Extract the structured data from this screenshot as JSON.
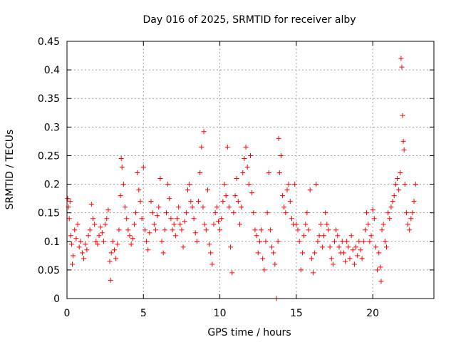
{
  "chart_data": {
    "type": "scatter",
    "title": "Day 016 of 2025, SRMTID for receiver alby",
    "xlabel": "GPS time / hours",
    "ylabel": "SRMTID / TECUs",
    "xlim": [
      0,
      24
    ],
    "ylim": [
      0,
      0.45
    ],
    "xticks": [
      0,
      5,
      10,
      15,
      20
    ],
    "xtick_labels": [
      "0",
      "5",
      "10",
      "15",
      "20"
    ],
    "yticks": [
      0,
      0.05,
      0.1,
      0.15,
      0.2,
      0.25,
      0.3,
      0.35,
      0.4,
      0.45
    ],
    "ytick_labels": [
      "0",
      "0.05",
      "0.1",
      "0.15",
      "0.2",
      "0.25",
      "0.3",
      "0.35",
      "0.4",
      "0.45"
    ],
    "grid": true,
    "marker": "+",
    "color": "#ff0000",
    "series": [
      {
        "name": "SRMTID",
        "points": [
          [
            0.05,
            0.175
          ],
          [
            0.1,
            0.16
          ],
          [
            0.15,
            0.14
          ],
          [
            0.2,
            0.17
          ],
          [
            0.25,
            0.11
          ],
          [
            0.3,
            0.095
          ],
          [
            0.35,
            0.06
          ],
          [
            0.4,
            0.075
          ],
          [
            0.5,
            0.12
          ],
          [
            0.6,
            0.105
          ],
          [
            0.7,
            0.13
          ],
          [
            0.8,
            0.09
          ],
          [
            0.9,
            0.1
          ],
          [
            1.0,
            0.08
          ],
          [
            1.1,
            0.07
          ],
          [
            1.2,
            0.095
          ],
          [
            1.3,
            0.085
          ],
          [
            1.4,
            0.11
          ],
          [
            1.5,
            0.12
          ],
          [
            1.6,
            0.165
          ],
          [
            1.7,
            0.14
          ],
          [
            1.8,
            0.13
          ],
          [
            1.9,
            0.1
          ],
          [
            2.0,
            0.095
          ],
          [
            2.1,
            0.11
          ],
          [
            2.2,
            0.125
          ],
          [
            2.3,
            0.115
          ],
          [
            2.4,
            0.1
          ],
          [
            2.5,
            0.13
          ],
          [
            2.6,
            0.14
          ],
          [
            2.7,
            0.155
          ],
          [
            2.8,
            0.065
          ],
          [
            2.85,
            0.032
          ],
          [
            2.9,
            0.08
          ],
          [
            3.0,
            0.1
          ],
          [
            3.1,
            0.085
          ],
          [
            3.2,
            0.07
          ],
          [
            3.3,
            0.095
          ],
          [
            3.4,
            0.12
          ],
          [
            3.5,
            0.18
          ],
          [
            3.55,
            0.245
          ],
          [
            3.6,
            0.23
          ],
          [
            3.7,
            0.2
          ],
          [
            3.8,
            0.16
          ],
          [
            3.9,
            0.14
          ],
          [
            4.0,
            0.12
          ],
          [
            4.1,
            0.11
          ],
          [
            4.2,
            0.095
          ],
          [
            4.3,
            0.105
          ],
          [
            4.4,
            0.13
          ],
          [
            4.5,
            0.15
          ],
          [
            4.6,
            0.22
          ],
          [
            4.7,
            0.19
          ],
          [
            4.8,
            0.17
          ],
          [
            4.9,
            0.14
          ],
          [
            5.0,
            0.23
          ],
          [
            5.1,
            0.12
          ],
          [
            5.2,
            0.1
          ],
          [
            5.3,
            0.085
          ],
          [
            5.4,
            0.115
          ],
          [
            5.5,
            0.17
          ],
          [
            5.6,
            0.15
          ],
          [
            5.7,
            0.13
          ],
          [
            5.8,
            0.12
          ],
          [
            5.9,
            0.145
          ],
          [
            6.0,
            0.16
          ],
          [
            6.1,
            0.21
          ],
          [
            6.2,
            0.1
          ],
          [
            6.3,
            0.08
          ],
          [
            6.4,
            0.12
          ],
          [
            6.5,
            0.15
          ],
          [
            6.6,
            0.2
          ],
          [
            6.7,
            0.175
          ],
          [
            6.8,
            0.14
          ],
          [
            6.9,
            0.12
          ],
          [
            7.0,
            0.13
          ],
          [
            7.1,
            0.11
          ],
          [
            7.2,
            0.14
          ],
          [
            7.3,
            0.16
          ],
          [
            7.4,
            0.13
          ],
          [
            7.5,
            0.12
          ],
          [
            7.6,
            0.09
          ],
          [
            7.7,
            0.135
          ],
          [
            7.8,
            0.15
          ],
          [
            7.9,
            0.19
          ],
          [
            8.0,
            0.2
          ],
          [
            8.1,
            0.17
          ],
          [
            8.2,
            0.16
          ],
          [
            8.3,
            0.14
          ],
          [
            8.4,
            0.115
          ],
          [
            8.5,
            0.1
          ],
          [
            8.6,
            0.17
          ],
          [
            8.7,
            0.22
          ],
          [
            8.8,
            0.265
          ],
          [
            8.9,
            0.16
          ],
          [
            8.95,
            0.292
          ],
          [
            9.0,
            0.13
          ],
          [
            9.1,
            0.12
          ],
          [
            9.2,
            0.19
          ],
          [
            9.3,
            0.095
          ],
          [
            9.4,
            0.08
          ],
          [
            9.5,
            0.06
          ],
          [
            9.6,
            0.13
          ],
          [
            9.7,
            0.15
          ],
          [
            9.8,
            0.16
          ],
          [
            9.9,
            0.135
          ],
          [
            10.0,
            0.12
          ],
          [
            10.1,
            0.14
          ],
          [
            10.2,
            0.17
          ],
          [
            10.3,
            0.2
          ],
          [
            10.4,
            0.18
          ],
          [
            10.5,
            0.265
          ],
          [
            10.6,
            0.16
          ],
          [
            10.7,
            0.09
          ],
          [
            10.8,
            0.045
          ],
          [
            10.9,
            0.15
          ],
          [
            11.0,
            0.18
          ],
          [
            11.1,
            0.21
          ],
          [
            11.2,
            0.17
          ],
          [
            11.3,
            0.13
          ],
          [
            11.4,
            0.16
          ],
          [
            11.5,
            0.22
          ],
          [
            11.6,
            0.245
          ],
          [
            11.7,
            0.265
          ],
          [
            11.8,
            0.23
          ],
          [
            11.9,
            0.2
          ],
          [
            12.0,
            0.25
          ],
          [
            12.1,
            0.185
          ],
          [
            12.2,
            0.15
          ],
          [
            12.3,
            0.12
          ],
          [
            12.4,
            0.11
          ],
          [
            12.5,
            0.08
          ],
          [
            12.6,
            0.1
          ],
          [
            12.7,
            0.12
          ],
          [
            12.8,
            0.07
          ],
          [
            12.9,
            0.05
          ],
          [
            13.0,
            0.1
          ],
          [
            13.1,
            0.15
          ],
          [
            13.2,
            0.22
          ],
          [
            13.3,
            0.12
          ],
          [
            13.4,
            0.09
          ],
          [
            13.5,
            0.08
          ],
          [
            13.6,
            0.06
          ],
          [
            13.7,
            0.0
          ],
          [
            13.8,
            0.1
          ],
          [
            13.85,
            0.28
          ],
          [
            13.9,
            0.22
          ],
          [
            14.0,
            0.25
          ],
          [
            14.1,
            0.18
          ],
          [
            14.2,
            0.16
          ],
          [
            14.3,
            0.15
          ],
          [
            14.4,
            0.19
          ],
          [
            14.5,
            0.2
          ],
          [
            14.6,
            0.17
          ],
          [
            14.7,
            0.14
          ],
          [
            14.8,
            0.13
          ],
          [
            14.9,
            0.2
          ],
          [
            15.0,
            0.13
          ],
          [
            15.1,
            0.12
          ],
          [
            15.2,
            0.1
          ],
          [
            15.3,
            0.05
          ],
          [
            15.4,
            0.08
          ],
          [
            15.5,
            0.11
          ],
          [
            15.6,
            0.13
          ],
          [
            15.7,
            0.15
          ],
          [
            15.8,
            0.12
          ],
          [
            15.9,
            0.19
          ],
          [
            16.0,
            0.07
          ],
          [
            16.1,
            0.045
          ],
          [
            16.2,
            0.08
          ],
          [
            16.3,
            0.2
          ],
          [
            16.4,
            0.1
          ],
          [
            16.5,
            0.11
          ],
          [
            16.6,
            0.13
          ],
          [
            16.7,
            0.09
          ],
          [
            16.8,
            0.11
          ],
          [
            16.9,
            0.15
          ],
          [
            17.0,
            0.13
          ],
          [
            17.1,
            0.12
          ],
          [
            17.2,
            0.09
          ],
          [
            17.3,
            0.07
          ],
          [
            17.4,
            0.06
          ],
          [
            17.5,
            0.1
          ],
          [
            17.6,
            0.12
          ],
          [
            17.7,
            0.11
          ],
          [
            17.8,
            0.09
          ],
          [
            17.9,
            0.08
          ],
          [
            18.0,
            0.1
          ],
          [
            18.1,
            0.08
          ],
          [
            18.2,
            0.065
          ],
          [
            18.3,
            0.1
          ],
          [
            18.4,
            0.09
          ],
          [
            18.5,
            0.07
          ],
          [
            18.6,
            0.11
          ],
          [
            18.7,
            0.085
          ],
          [
            18.8,
            0.06
          ],
          [
            18.9,
            0.09
          ],
          [
            19.0,
            0.075
          ],
          [
            19.1,
            0.1
          ],
          [
            19.2,
            0.085
          ],
          [
            19.3,
            0.07
          ],
          [
            19.4,
            0.1
          ],
          [
            19.5,
            0.12
          ],
          [
            19.6,
            0.15
          ],
          [
            19.7,
            0.13
          ],
          [
            19.8,
            0.1
          ],
          [
            19.9,
            0.11
          ],
          [
            20.0,
            0.155
          ],
          [
            20.1,
            0.14
          ],
          [
            20.2,
            0.09
          ],
          [
            20.3,
            0.05
          ],
          [
            20.4,
            0.08
          ],
          [
            20.5,
            0.055
          ],
          [
            20.55,
            0.03
          ],
          [
            20.6,
            0.12
          ],
          [
            20.7,
            0.13
          ],
          [
            20.8,
            0.1
          ],
          [
            20.9,
            0.09
          ],
          [
            21.0,
            0.15
          ],
          [
            21.1,
            0.14
          ],
          [
            21.2,
            0.16
          ],
          [
            21.3,
            0.17
          ],
          [
            21.4,
            0.18
          ],
          [
            21.5,
            0.2
          ],
          [
            21.6,
            0.21
          ],
          [
            21.7,
            0.19
          ],
          [
            21.8,
            0.22
          ],
          [
            21.85,
            0.42
          ],
          [
            21.9,
            0.405
          ],
          [
            21.95,
            0.32
          ],
          [
            22.0,
            0.275
          ],
          [
            22.05,
            0.26
          ],
          [
            22.1,
            0.2
          ],
          [
            22.2,
            0.15
          ],
          [
            22.3,
            0.13
          ],
          [
            22.4,
            0.12
          ],
          [
            22.5,
            0.14
          ],
          [
            22.6,
            0.15
          ],
          [
            22.7,
            0.17
          ],
          [
            22.8,
            0.2
          ]
        ]
      }
    ]
  }
}
